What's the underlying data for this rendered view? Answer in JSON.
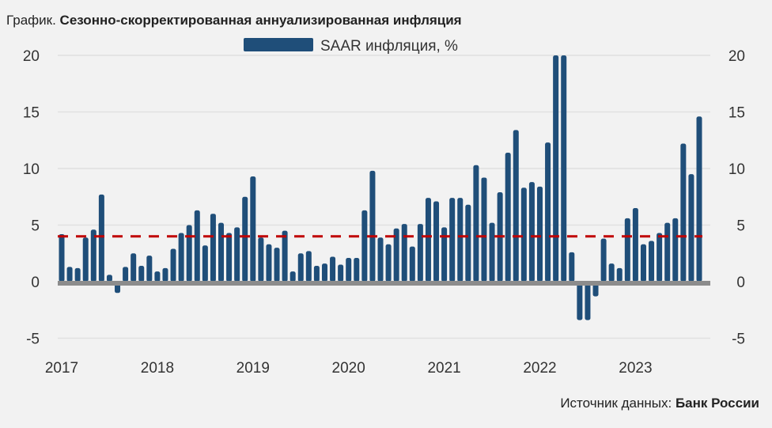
{
  "title_prefix": "График.",
  "title": "Сезонно-скорректированная аннуализированная инфляция",
  "source_label": "Источник данных:",
  "source_value": "Банк России",
  "chart_data": {
    "type": "bar",
    "title": "Сезонно-скорректированная аннуализированная инфляция",
    "legend": {
      "label": "SAAR инфляция, %",
      "position": "top-center"
    },
    "ylim": [
      -5,
      20
    ],
    "yticks": [
      -5,
      0,
      5,
      10,
      15,
      20
    ],
    "ytick_labels": [
      "-5",
      "0",
      "5",
      "10",
      "15",
      "20"
    ],
    "xtick_labels": [
      "2017",
      "2018",
      "2019",
      "2020",
      "2021",
      "2022",
      "2023"
    ],
    "grid": true,
    "target_line": 4,
    "colors": {
      "bar": "#1f4e79",
      "target": "#c00000",
      "zero": "#8c8c8c",
      "grid": "#e0e0e0"
    },
    "start": "2017-01",
    "values": [
      4.2,
      1.3,
      1.2,
      3.9,
      4.6,
      7.7,
      0.6,
      -1.0,
      1.3,
      2.5,
      1.4,
      2.3,
      0.9,
      1.2,
      2.9,
      4.3,
      5.0,
      6.3,
      3.2,
      6.0,
      5.2,
      4.3,
      4.8,
      7.5,
      9.3,
      3.9,
      3.3,
      3.0,
      4.5,
      0.9,
      2.5,
      2.7,
      1.4,
      1.6,
      2.2,
      1.5,
      2.1,
      2.1,
      6.3,
      9.8,
      3.9,
      3.3,
      4.7,
      5.1,
      3.1,
      5.1,
      7.4,
      7.1,
      4.8,
      7.4,
      7.4,
      6.8,
      10.3,
      9.2,
      5.2,
      7.9,
      11.4,
      13.4,
      8.3,
      8.8,
      8.4,
      12.3,
      20,
      20,
      2.6,
      -3.4,
      -3.4,
      -1.3,
      3.8,
      1.6,
      1.2,
      5.6,
      6.5,
      3.3,
      3.6,
      4.3,
      5.2,
      5.6,
      12.2,
      9.5,
      14.6
    ]
  }
}
